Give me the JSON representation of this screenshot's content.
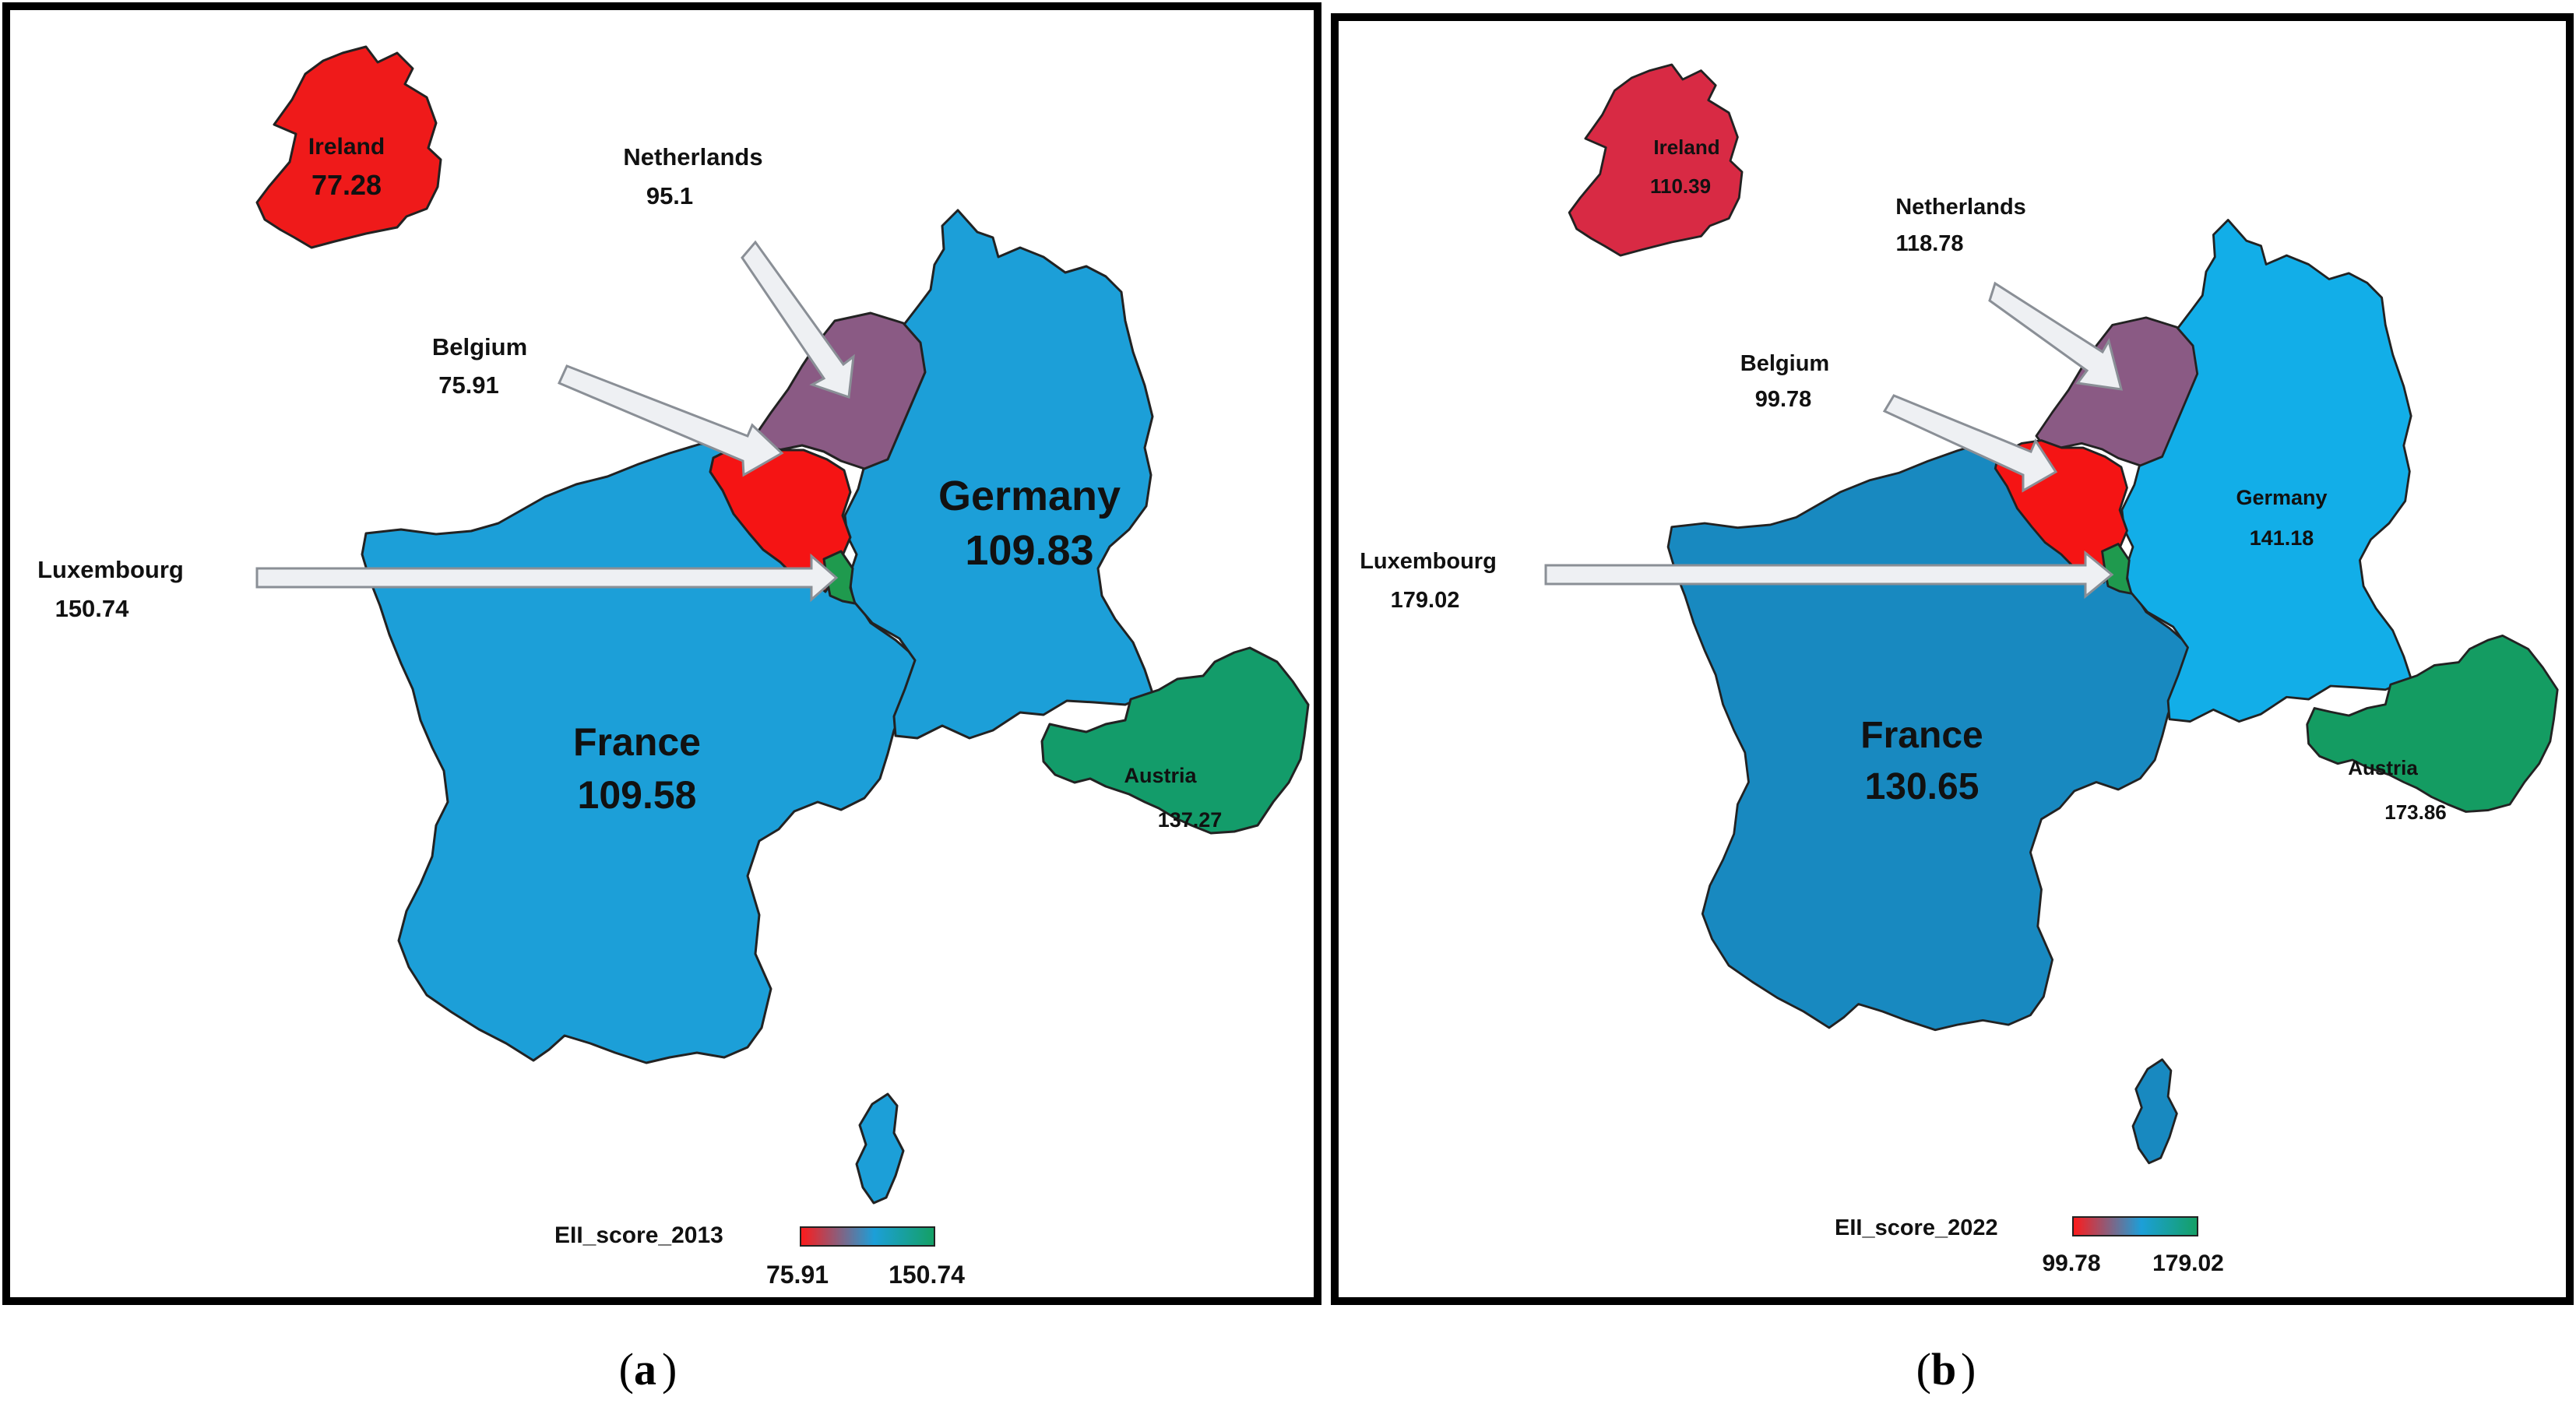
{
  "panels": [
    {
      "legend_title": "EII_score_2013",
      "legend_min": "75.91",
      "legend_max": "150.74",
      "caption_letter": "a",
      "ireland": {
        "name": "Ireland",
        "value": "77.28"
      },
      "netherlands": {
        "name": "Netherlands",
        "value": "95.1"
      },
      "belgium": {
        "name": "Belgium",
        "value": "75.91"
      },
      "luxembourg": {
        "name": "Luxembourg",
        "value": "150.74"
      },
      "germany": {
        "name": "Germany",
        "value": "109.83"
      },
      "france": {
        "name": "France",
        "value": "109.58"
      },
      "austria": {
        "name": "Austria",
        "value": "137.27"
      },
      "colors": {
        "ireland": "#ef1a1a",
        "netherlands": "#8a5a84",
        "belgium": "#f51414",
        "luxembourg": "#1f9a4e",
        "germany": "#1c9fd8",
        "france": "#1c9fd8",
        "austria": "#139c6a"
      }
    },
    {
      "legend_title": "EII_score_2022",
      "legend_min": "99.78",
      "legend_max": "179.02",
      "caption_letter": "b",
      "ireland": {
        "name": "Ireland",
        "value": "110.39"
      },
      "netherlands": {
        "name": "Netherlands",
        "value": "118.78"
      },
      "belgium": {
        "name": "Belgium",
        "value": "99.78"
      },
      "luxembourg": {
        "name": "Luxembourg",
        "value": "179.02"
      },
      "germany": {
        "name": "Germany",
        "value": "141.18"
      },
      "france": {
        "name": "France",
        "value": "130.65"
      },
      "austria": {
        "name": "Austria",
        "value": "173.86"
      },
      "colors": {
        "ireland": "#d82a44",
        "netherlands": "#8a5a84",
        "belgium": "#f51414",
        "luxembourg": "#1f9a4e",
        "germany": "#12aee8",
        "france": "#1889c0",
        "austria": "#149c62"
      }
    }
  ],
  "legend_gradient": [
    "#ff1a1a",
    "#1c9fd8",
    "#14a064"
  ]
}
